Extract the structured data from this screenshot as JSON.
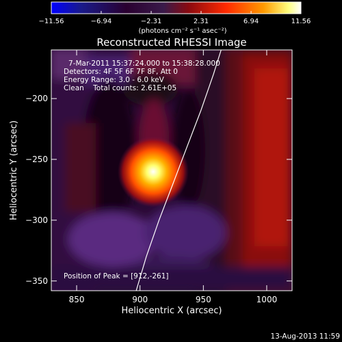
{
  "chart_data": {
    "type": "heatmap",
    "title": "Reconstructed RHESSI Image",
    "xlabel": "Heliocentric X (arcsec)",
    "ylabel": "Heliocentric Y (arcsec)",
    "xlim": [
      830,
      1020
    ],
    "ylim": [
      -358,
      -160
    ],
    "x_ticks": [
      850,
      900,
      950,
      1000
    ],
    "x_tick_labels": [
      "850",
      "900",
      "950",
      "1000"
    ],
    "y_ticks": [
      -200,
      -250,
      -300,
      -350
    ],
    "y_tick_labels": [
      "−200",
      "−250",
      "−300",
      "−350"
    ],
    "colorbar": {
      "min": -11.56,
      "max": 11.56,
      "ticks": [
        -11.56,
        -6.94,
        -2.31,
        2.31,
        6.94,
        11.56
      ],
      "tick_labels": [
        "−11.56",
        "−6.94",
        "−2.31",
        "2.31",
        "6.94",
        "11.56"
      ],
      "unit_label": "(photons cm⁻² s⁻¹ asec⁻²)",
      "colors": [
        "#0000ff",
        "#1a1a8a",
        "#2a0030",
        "#3a1a4a",
        "#8a0a10",
        "#ff2a00",
        "#ff9a00",
        "#ffff80",
        "#ffffff"
      ]
    },
    "annotations": [
      "7-Mar-2011 15:37:24.000 to 15:38:28.000",
      "Detectors: 4F 5F 6F 7F 8F, Att 0",
      "Energy Range: 3.0 - 6.0 keV",
      "Clean    Total counts: 2.61E+05"
    ],
    "peak_label": "Position of Peak = [912,-261]",
    "peak": {
      "x": 912,
      "y": -261
    },
    "limb_curve": [
      [
        897,
        -358
      ],
      [
        905,
        -330
      ],
      [
        915,
        -300
      ],
      [
        926,
        -270
      ],
      [
        937,
        -240
      ],
      [
        948,
        -210
      ],
      [
        958,
        -180
      ],
      [
        964,
        -160
      ]
    ],
    "background_color": "#000000",
    "limb_color": "#ffffff"
  },
  "footer": {
    "timestamp": "13-Aug-2013 11:59"
  }
}
